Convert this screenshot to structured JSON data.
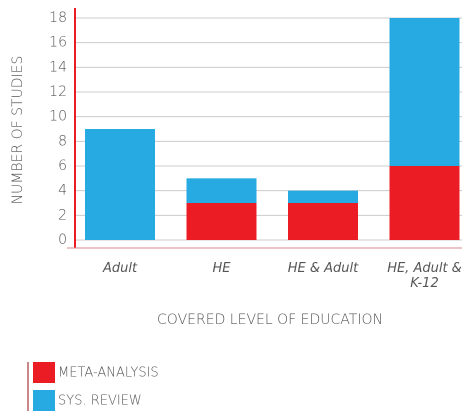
{
  "chart_data": {
    "type": "stacked_bar",
    "categories": [
      "Adult",
      "HE",
      "HE & Adult",
      "HE, Adult & K-12"
    ],
    "series": [
      {
        "name": "META-ANALYSIS",
        "color": "#ec1c24",
        "values": [
          0,
          3,
          3,
          6
        ]
      },
      {
        "name": "SYS. REVIEW",
        "color": "#27aae1",
        "values": [
          9,
          2,
          1,
          12
        ]
      }
    ],
    "ylim": [
      0,
      18
    ],
    "yticks": [
      0,
      2,
      4,
      6,
      8,
      10,
      12,
      14,
      16,
      18
    ],
    "grid": true,
    "xlabel": "COVERED LEVEL OF EDUCATION",
    "ylabel": "NUMBER OF STUDIES",
    "legend": "bottom-left"
  }
}
